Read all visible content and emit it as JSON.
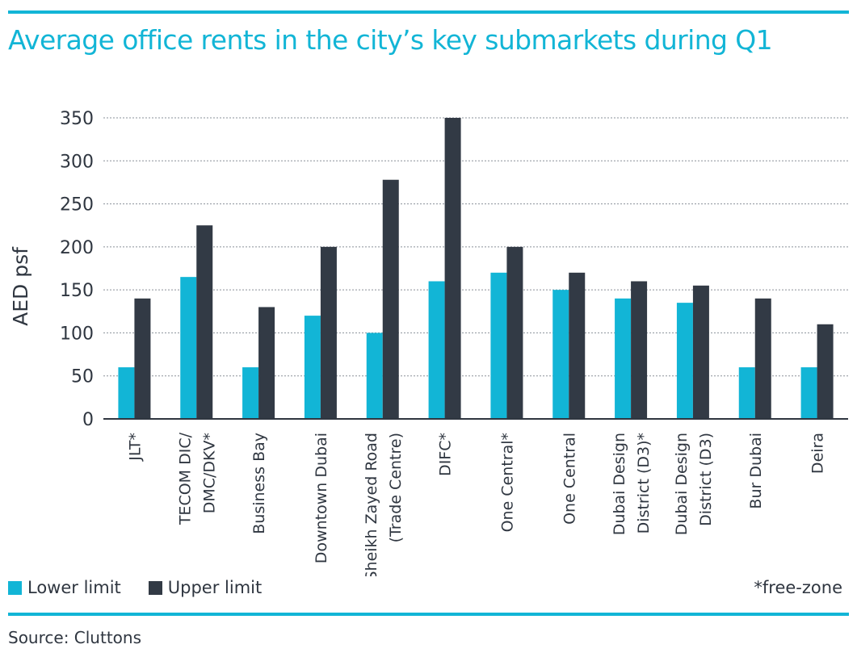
{
  "title": "Average office rents in the city’s key submarkets during Q1",
  "chart_data": {
    "type": "bar",
    "title": "Average office rents in the city’s key submarkets during Q1",
    "ylabel": "AED psf",
    "xlabel": "",
    "ylim": [
      0,
      350
    ],
    "yticks": [
      0,
      50,
      100,
      150,
      200,
      250,
      300,
      350
    ],
    "grid": true,
    "legend_position": "bottom-left",
    "categories": [
      [
        "JLT*"
      ],
      [
        "TECOM DIC/",
        "DMC/DKV*"
      ],
      [
        "Business Bay"
      ],
      [
        "Downtown Dubai"
      ],
      [
        "Sheikh Zayed Road",
        "(Trade Centre)"
      ],
      [
        "DIFC*"
      ],
      [
        "One Central*"
      ],
      [
        "One Central"
      ],
      [
        "Dubai Design",
        "District (D3)*"
      ],
      [
        "Dubai Design",
        "District (D3)"
      ],
      [
        "Bur Dubai"
      ],
      [
        "Deira"
      ]
    ],
    "series": [
      {
        "name": "Lower limit",
        "color": "#12b5d6",
        "values": [
          60,
          165,
          60,
          120,
          100,
          160,
          170,
          150,
          140,
          135,
          60,
          60
        ]
      },
      {
        "name": "Upper limit",
        "color": "#323a45",
        "values": [
          140,
          225,
          130,
          200,
          278,
          350,
          200,
          170,
          160,
          155,
          140,
          110
        ]
      }
    ]
  },
  "legend": {
    "lower": "Lower limit",
    "upper": "Upper limit"
  },
  "note": "*free-zone",
  "source": "Source: Cluttons",
  "colors": {
    "accent": "#12b5d6",
    "dark": "#323a45",
    "text": "#2f3640"
  }
}
